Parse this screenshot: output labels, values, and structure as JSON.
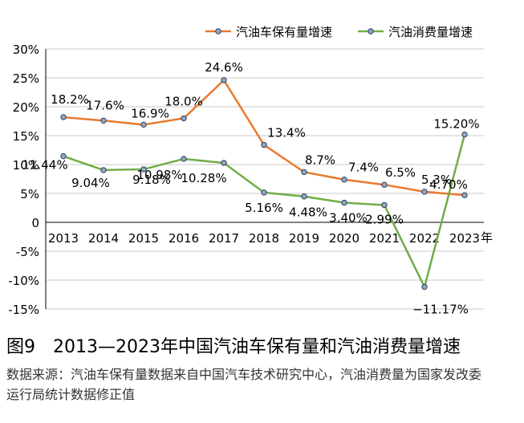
{
  "chart_data": {
    "type": "line",
    "title": "",
    "xlabel": "年",
    "ylabel": "",
    "ylim": [
      -15,
      30
    ],
    "yticks": [
      -15,
      -10,
      -5,
      0,
      5,
      10,
      15,
      20,
      25,
      30
    ],
    "ytick_labels": [
      "-15%",
      "-10%",
      "-5%",
      "0",
      "5%",
      "10%",
      "15%",
      "20%",
      "25%",
      "30%"
    ],
    "grid": true,
    "legend": "top-right",
    "categories": [
      "2013",
      "2014",
      "2015",
      "2016",
      "2017",
      "2018",
      "2019",
      "2020",
      "2021",
      "2022",
      "2023"
    ],
    "series": [
      {
        "name": "汽油车保有量增速",
        "color": "#e8792e",
        "values": [
          18.2,
          17.6,
          16.9,
          18.0,
          24.6,
          13.4,
          8.7,
          7.4,
          6.5,
          5.3,
          4.7
        ],
        "labels": [
          "18.2%",
          "17.6%",
          "16.9%",
          "18.0%",
          "24.6%",
          "13.4%",
          "8.7%",
          "7.4%",
          "6.5%",
          "5.3%",
          "4.70%"
        ]
      },
      {
        "name": "汽油消费量增速",
        "color": "#70ad47",
        "values": [
          11.44,
          9.04,
          9.18,
          10.98,
          10.28,
          5.16,
          4.48,
          3.4,
          2.99,
          -11.17,
          15.2
        ],
        "labels": [
          "11.44%",
          "9.04%",
          "9.18%",
          "10.98%",
          "10.28%",
          "5.16%",
          "4.48%",
          "3.40%",
          "2.99%",
          "−11.17%",
          "15.20%"
        ]
      }
    ]
  },
  "caption": {
    "figure_title": "图9　2013—2023年中国汽油车保有量和汽油消费量增速",
    "source": "数据来源：汽油车保有量数据来自中国汽车技术研究中心，汽油消费量为国家发改委运行局统计数据修正值"
  }
}
